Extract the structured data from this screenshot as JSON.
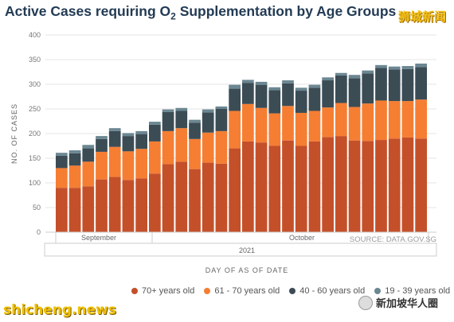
{
  "title_main": "Active Cases requiring O",
  "title_sub": "2",
  "title_rest": " Supplementation by Age Groups",
  "watermarks": {
    "top_right": "狮城新闻",
    "bottom_left": "shicheng.news",
    "bottom_right": "新加坡华人圈"
  },
  "colors": {
    "70+": "#c4502a",
    "61-70": "#f57e33",
    "40-60": "#3b4c55",
    "19-39": "#6b8792"
  },
  "chart_data": {
    "type": "bar",
    "stacked": true,
    "ylabel": "NO. OF CASES",
    "xlabel": "DAY OF AS OF DATE",
    "ylim": [
      0,
      400
    ],
    "yticks": [
      0,
      50,
      100,
      150,
      200,
      250,
      300,
      350,
      400
    ],
    "year_label": "2021",
    "month_labels": [
      "September",
      "October"
    ],
    "source": "SOURCE: DATA.GOV.SG",
    "series": [
      {
        "name": "70+ years old",
        "key": "70+",
        "values": [
          90,
          90,
          93,
          107,
          112,
          106,
          109,
          119,
          138,
          143,
          128,
          141,
          139,
          170,
          184,
          182,
          175,
          186,
          175,
          184,
          193,
          195,
          186,
          185,
          187,
          190,
          192,
          190
        ]
      },
      {
        "name": "61 - 70 years old",
        "key": "61-70",
        "values": [
          40,
          45,
          50,
          56,
          61,
          58,
          60,
          65,
          67,
          68,
          61,
          61,
          66,
          76,
          76,
          70,
          66,
          70,
          67,
          62,
          60,
          67,
          68,
          76,
          80,
          76,
          74,
          79
        ]
      },
      {
        "name": "40 - 60 years old",
        "key": "40-60",
        "values": [
          25,
          25,
          27,
          26,
          32,
          31,
          30,
          34,
          39,
          35,
          33,
          41,
          45,
          45,
          43,
          47,
          47,
          46,
          45,
          47,
          55,
          56,
          58,
          61,
          66,
          64,
          65,
          66
        ]
      },
      {
        "name": "19 - 39 years old",
        "key": "19-39",
        "values": [
          6,
          6,
          7,
          6,
          6,
          6,
          6,
          6,
          5,
          6,
          6,
          6,
          5,
          8,
          6,
          6,
          6,
          6,
          6,
          6,
          6,
          5,
          7,
          6,
          6,
          6,
          6,
          7
        ]
      }
    ]
  }
}
